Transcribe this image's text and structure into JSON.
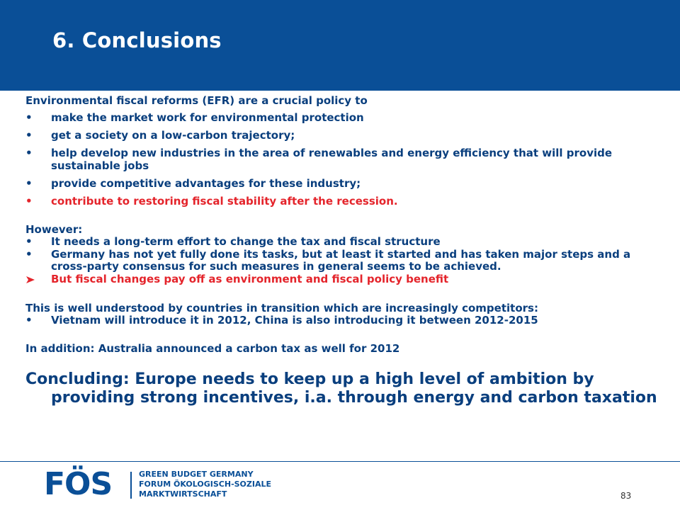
{
  "slide": {
    "title": "6. Conclusions",
    "intro": "Environmental fiscal reforms (EFR) are a crucial policy to",
    "reasons": [
      "make the market work for environmental protection",
      "get a society on a low-carbon trajectory;",
      "help develop new industries in the area of renewables and energy efficiency that will provide sustainable jobs",
      "provide competitive advantages for these industry;",
      "contribute to restoring fiscal stability after the recession."
    ],
    "however_label": "However:",
    "however_points": [
      "It needs a long-term effort to change the tax and fiscal structure",
      "Germany has not yet fully done its tasks, but at least it started and has taken major steps and a cross-party consensus for such measures in general seems to be achieved."
    ],
    "highlight": "But fiscal changes pay off as environment and fiscal policy benefit",
    "transition_label": "This is well understood by countries in transition which are increasingly competitors:",
    "transition_points": [
      "Vietnam will introduce it in 2012, China is also introducing it between 2012-2015"
    ],
    "addition": "In addition: Australia announced a carbon tax as well for 2012",
    "concluding_line1": "Concluding: Europe needs to keep up a high level of ambition by",
    "concluding_line2": "providing strong incentives, i.a. through energy and carbon taxation",
    "bullet": "•",
    "page_number": "83"
  },
  "footer": {
    "logo_text": "FÖS",
    "logo_line1": "GREEN BUDGET GERMANY",
    "logo_line2": "FORUM ÖKOLOGISCH-SOZIALE",
    "logo_line3": "MARKTWIRTSCHAFT"
  },
  "colors": {
    "header_blue": "#0A4F97",
    "text_navy": "#0A3F7E",
    "accent_red": "#E4242B"
  }
}
